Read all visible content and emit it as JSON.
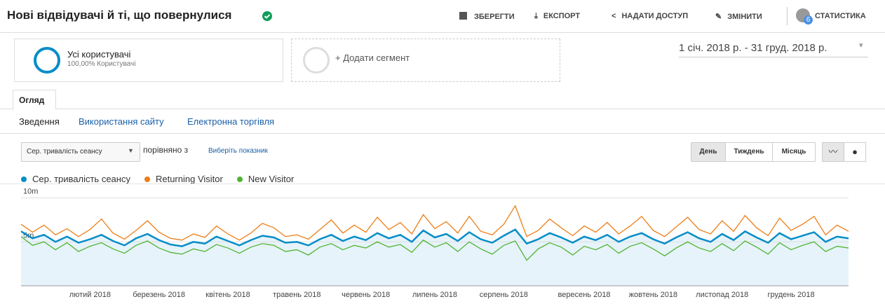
{
  "header": {
    "title": "Нові відвідувачі й ті, що повернулися",
    "actions": [
      "ЗБЕРЕГТИ",
      "ЕКСПОРТ",
      "НАДАТИ ДОСТУП",
      "ЗМІНИТИ",
      "СТАТИСТИКА"
    ],
    "badge": "6"
  },
  "segments": {
    "name": "Усі користувачі",
    "detail": "100,00% Користувачі",
    "add": "+ Додати сегмент"
  },
  "date_range": "1 січ. 2018 р. - 31 груд. 2018 р.",
  "tab": "Огляд",
  "subtabs": [
    "Зведення",
    "Використання сайту",
    "Електронна торгівля"
  ],
  "controls": {
    "metric": "Сер. тривалість сеансу",
    "compare": "порівняно з",
    "pick": "Виберіть показник",
    "periods": [
      "День",
      "Тиждень",
      "Місяць"
    ]
  },
  "chart_data": {
    "type": "line",
    "categories": [
      null,
      null,
      null,
      null,
      null,
      null,
      "лютий 2018",
      null,
      null,
      null,
      null,
      null,
      "березень 2018",
      null,
      null,
      null,
      null,
      null,
      "квітень 2018",
      null,
      null,
      null,
      null,
      null,
      "травень 2018",
      null,
      null,
      null,
      null,
      null,
      "червень 2018",
      null,
      null,
      null,
      null,
      null,
      "липень 2018",
      null,
      null,
      null,
      null,
      null,
      "серпень 2018",
      null,
      null,
      null,
      null,
      null,
      null,
      "вересень 2018",
      null,
      null,
      null,
      null,
      null,
      "жовтень 2018",
      null,
      null,
      null,
      null,
      null,
      "листопад 2018",
      null,
      null,
      null,
      null,
      null,
      "грудень 2018",
      null,
      null,
      null,
      null,
      null
    ],
    "series": [
      {
        "name": "Сер. тривалість сеансу",
        "color": "#058dc7",
        "values": [
          6.2,
          5.4,
          5.8,
          5.0,
          5.6,
          4.9,
          5.3,
          5.8,
          5.1,
          4.6,
          5.4,
          5.9,
          5.2,
          4.7,
          4.5,
          5.0,
          4.8,
          5.6,
          5.1,
          4.6,
          5.2,
          5.7,
          5.5,
          4.9,
          5.0,
          4.6,
          5.3,
          5.8,
          5.1,
          5.6,
          5.2,
          6.0,
          5.4,
          5.8,
          5.0,
          6.3,
          5.5,
          5.9,
          5.1,
          6.1,
          5.3,
          4.9,
          5.7,
          6.4,
          4.8,
          5.3,
          6.0,
          5.5,
          4.9,
          5.6,
          5.2,
          5.8,
          5.0,
          5.6,
          6.0,
          5.3,
          4.8,
          5.5,
          6.1,
          5.4,
          5.0,
          5.9,
          5.2,
          6.2,
          5.5,
          4.9,
          6.0,
          5.3,
          5.7,
          6.1,
          5.0,
          5.6,
          5.4
        ]
      },
      {
        "name": "Returning Visitor",
        "color": "#ed7e17",
        "values": [
          7.0,
          6.1,
          6.9,
          5.8,
          6.5,
          5.6,
          6.4,
          7.6,
          6.0,
          5.3,
          6.3,
          7.4,
          6.1,
          5.4,
          5.2,
          5.9,
          5.5,
          6.8,
          5.9,
          5.2,
          6.0,
          7.1,
          6.6,
          5.6,
          5.8,
          5.3,
          6.4,
          7.5,
          6.0,
          6.9,
          6.1,
          7.8,
          6.4,
          7.2,
          5.9,
          8.1,
          6.5,
          7.3,
          6.0,
          7.9,
          6.2,
          5.8,
          7.0,
          9.1,
          5.6,
          6.3,
          7.6,
          6.6,
          5.7,
          6.8,
          6.1,
          7.2,
          5.9,
          6.8,
          7.9,
          6.3,
          5.6,
          6.7,
          7.8,
          6.4,
          5.9,
          7.4,
          6.2,
          8.0,
          6.6,
          5.7,
          7.7,
          6.3,
          7.0,
          7.9,
          5.8,
          6.9,
          6.2
        ]
      },
      {
        "name": "New Visitor",
        "color": "#50b432",
        "values": [
          5.6,
          4.6,
          5.0,
          4.1,
          4.9,
          3.9,
          4.5,
          4.9,
          4.2,
          3.7,
          4.6,
          5.1,
          4.3,
          3.8,
          3.6,
          4.2,
          3.9,
          4.7,
          4.3,
          3.7,
          4.4,
          4.8,
          4.6,
          3.9,
          4.1,
          3.5,
          4.4,
          4.8,
          4.1,
          4.6,
          4.3,
          5.0,
          4.4,
          4.7,
          3.8,
          5.2,
          4.4,
          4.9,
          3.9,
          5.0,
          4.2,
          3.6,
          4.6,
          5.1,
          2.9,
          4.2,
          4.9,
          4.4,
          3.5,
          4.5,
          4.1,
          4.7,
          3.7,
          4.5,
          4.9,
          4.2,
          3.4,
          4.3,
          5.0,
          4.3,
          3.9,
          4.8,
          4.0,
          5.1,
          4.4,
          3.6,
          4.9,
          4.1,
          4.6,
          5.0,
          3.9,
          4.5,
          4.3
        ]
      }
    ],
    "ylim": [
      0,
      11
    ],
    "yticks": [
      {
        "value": 5,
        "label": "5m"
      },
      {
        "value": 10,
        "label": "10m"
      }
    ],
    "grid": true,
    "area": true
  }
}
